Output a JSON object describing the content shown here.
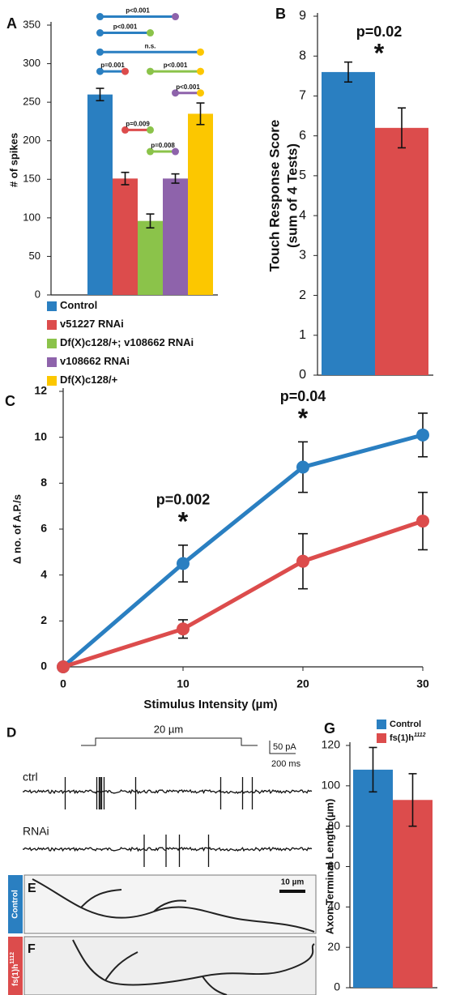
{
  "chart_data": [
    {
      "type": "bar",
      "panel": "A",
      "ylabel": "# of spikes",
      "ylim": [
        0,
        350
      ],
      "yticks": [
        0,
        50,
        100,
        150,
        200,
        250,
        300,
        350
      ],
      "series": [
        {
          "name": "Control",
          "color": "#2a7fc1",
          "values": [
            260
          ],
          "errors": [
            8
          ]
        },
        {
          "name": "v51227 RNAi",
          "color": "#dc4c4c",
          "values": [
            151
          ],
          "errors": [
            8
          ]
        },
        {
          "name": "Df(X)c128/+; v108662 RNAi",
          "color": "#8bc34a",
          "values": [
            96
          ],
          "errors": [
            9
          ]
        },
        {
          "name": "v108662 RNAi",
          "color": "#8e63ab",
          "values": [
            151
          ],
          "errors": [
            6
          ]
        },
        {
          "name": "Df(X)c128/+",
          "color": "#fcc700",
          "values": [
            235
          ],
          "errors": [
            14
          ]
        }
      ],
      "comparisons": [
        {
          "from": 0,
          "to": 3,
          "label": "p<0.001",
          "y": 361
        },
        {
          "from": 0,
          "to": 2,
          "label": "p<0.001",
          "y": 340
        },
        {
          "from": 0,
          "to": 4,
          "label": "n.s.",
          "y": 315
        },
        {
          "from": 0,
          "to": 1,
          "label": "p=0.001",
          "y": 290
        },
        {
          "from": 2,
          "to": 4,
          "label": "p<0.001",
          "y": 290
        },
        {
          "from": 3,
          "to": 4,
          "label": "p<0.001",
          "y": 262
        },
        {
          "from": 1,
          "to": 2,
          "label": "p=0.009",
          "y": 214
        },
        {
          "from": 2,
          "to": 3,
          "label": "p=0.008",
          "y": 186
        }
      ]
    },
    {
      "type": "bar",
      "panel": "B",
      "ylabel": [
        "Touch Response Score",
        "(sum of 4 Tests)"
      ],
      "ylim": [
        0,
        9
      ],
      "yticks": [
        0,
        1,
        2,
        3,
        4,
        5,
        6,
        7,
        8,
        9
      ],
      "series": [
        {
          "color": "#2a7fc1",
          "values": [
            7.6
          ],
          "errors": [
            0.25
          ]
        },
        {
          "color": "#dc4c4c",
          "values": [
            6.2
          ],
          "errors": [
            0.5
          ]
        }
      ],
      "annotations": [
        {
          "label": "p=0.02",
          "mark": "*"
        }
      ]
    },
    {
      "type": "line",
      "panel": "C",
      "xlabel": "Stimulus Intensity (µm)",
      "ylabel": "Δ no. of A.P./s",
      "x": [
        0,
        10,
        20,
        30
      ],
      "xlim": [
        0,
        30
      ],
      "xticks": [
        0,
        10,
        20,
        30
      ],
      "ylim": [
        0,
        12
      ],
      "yticks": [
        0,
        2,
        4,
        6,
        8,
        10,
        12
      ],
      "series": [
        {
          "color": "#2a7fc1",
          "values": [
            0,
            4.5,
            8.7,
            10.1
          ],
          "errors": [
            0,
            0.8,
            1.1,
            0.95
          ]
        },
        {
          "color": "#dc4c4c",
          "values": [
            0,
            1.65,
            4.6,
            6.35
          ],
          "errors": [
            0,
            0.4,
            1.2,
            1.25
          ]
        }
      ],
      "annotations": [
        {
          "x": 10,
          "label": "p=0.002",
          "mark": "*"
        },
        {
          "x": 20,
          "label": "p=0.04",
          "mark": "*"
        }
      ]
    },
    {
      "type": "bar",
      "panel": "G",
      "ylabel": "Axon Terminal Length (µm)",
      "ylim": [
        0,
        120
      ],
      "yticks": [
        0,
        20,
        40,
        60,
        80,
        100,
        120
      ],
      "series": [
        {
          "name": "Control",
          "color": "#2a7fc1",
          "values": [
            108
          ],
          "errors": [
            11
          ]
        },
        {
          "name": "fs(1)h",
          "name_sup": "1112",
          "color": "#dc4c4c",
          "values": [
            93
          ],
          "errors": [
            13
          ]
        }
      ]
    }
  ],
  "traces": {
    "panel": "D",
    "stimulus": "20 µm",
    "scale_current": "50 pA",
    "scale_time": "200 ms",
    "rows": [
      "ctrl",
      "RNAi"
    ]
  },
  "images": {
    "panels": [
      "E",
      "F"
    ],
    "scale": "10 µm",
    "labels": [
      {
        "text": "Control"
      },
      {
        "text": "fs(1)h",
        "sup": "1112"
      }
    ]
  }
}
